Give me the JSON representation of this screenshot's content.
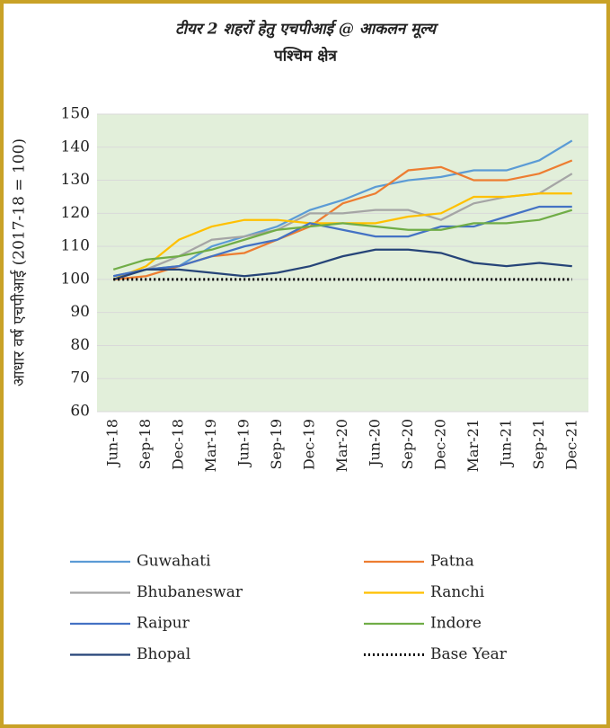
{
  "chart_data": {
    "type": "line",
    "title": "टीयर 2 शहरों हेतु एचपीआई @ आकलन मूल्य",
    "subtitle": "पश्चिम क्षेत्र",
    "y_label": "आधार वर्ष एचपीआई (2017-18 = 100)",
    "categories": [
      "Jun-18",
      "Sep-18",
      "Dec-18",
      "Mar-19",
      "Jun-19",
      "Sep-19",
      "Dec-19",
      "Mar-20",
      "Jun-20",
      "Sep-20",
      "Dec-20",
      "Mar-21",
      "Jun-21",
      "Sep-21",
      "Dec-21"
    ],
    "ylim": [
      60,
      150
    ],
    "yticks": [
      60,
      70,
      80,
      90,
      100,
      110,
      120,
      130,
      140,
      150
    ],
    "grid": true,
    "series": [
      {
        "name": "Guwahati",
        "color": "#5b9bd5",
        "values": [
          101,
          103,
          104,
          110,
          113,
          116,
          121,
          124,
          128,
          130,
          131,
          133,
          133,
          136,
          142
        ]
      },
      {
        "name": "Patna",
        "color": "#ed7d31",
        "values": [
          100,
          101,
          104,
          107,
          108,
          112,
          116,
          123,
          126,
          133,
          134,
          130,
          130,
          132,
          136
        ]
      },
      {
        "name": "Bhubaneswar",
        "color": "#a5a5a5",
        "values": [
          101,
          103,
          107,
          112,
          113,
          115,
          120,
          120,
          121,
          121,
          118,
          123,
          125,
          126,
          132
        ]
      },
      {
        "name": "Ranchi",
        "color": "#ffc000",
        "values": [
          100,
          104,
          112,
          116,
          118,
          118,
          117,
          117,
          117,
          119,
          120,
          125,
          125,
          126,
          126
        ]
      },
      {
        "name": "Raipur",
        "color": "#4472c4",
        "values": [
          101,
          103,
          104,
          107,
          110,
          112,
          117,
          115,
          113,
          113,
          116,
          116,
          119,
          122,
          122
        ]
      },
      {
        "name": "Indore",
        "color": "#70ad47",
        "values": [
          103,
          106,
          107,
          109,
          112,
          115,
          116,
          117,
          116,
          115,
          115,
          117,
          117,
          118,
          121
        ]
      },
      {
        "name": "Bhopal",
        "color": "#264478",
        "values": [
          100,
          103,
          103,
          102,
          101,
          102,
          104,
          107,
          109,
          109,
          108,
          105,
          104,
          105,
          104
        ]
      },
      {
        "name": "Base Year",
        "color": "#000000",
        "line_style": "dotted",
        "values": [
          100,
          100,
          100,
          100,
          100,
          100,
          100,
          100,
          100,
          100,
          100,
          100,
          100,
          100,
          100
        ]
      }
    ]
  }
}
